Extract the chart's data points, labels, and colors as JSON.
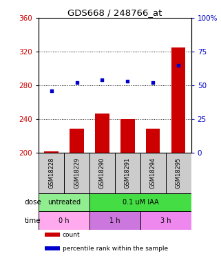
{
  "title": "GDS668 / 248766_at",
  "samples": [
    "GSM18228",
    "GSM18229",
    "GSM18290",
    "GSM18291",
    "GSM18294",
    "GSM18295"
  ],
  "bar_values": [
    201,
    228,
    246,
    240,
    228,
    325
  ],
  "dot_values": [
    46,
    52,
    54,
    53,
    52,
    65
  ],
  "ylim_left": [
    200,
    360
  ],
  "ylim_right": [
    0,
    100
  ],
  "yticks_left": [
    200,
    240,
    280,
    320,
    360
  ],
  "yticks_right": [
    0,
    25,
    50,
    75,
    100
  ],
  "bar_color": "#cc0000",
  "dot_color": "#0000cc",
  "bar_bottom": 200,
  "dose_labels": [
    {
      "label": "untreated",
      "span": [
        0,
        2
      ],
      "color": "#90ee90"
    },
    {
      "label": "0.1 uM IAA",
      "span": [
        2,
        6
      ],
      "color": "#44dd44"
    }
  ],
  "time_labels": [
    {
      "label": "0 h",
      "span": [
        0,
        2
      ],
      "color": "#ffaaee"
    },
    {
      "label": "1 h",
      "span": [
        2,
        4
      ],
      "color": "#cc77dd"
    },
    {
      "label": "3 h",
      "span": [
        4,
        6
      ],
      "color": "#ee88ee"
    }
  ],
  "dose_row_label": "dose",
  "time_row_label": "time",
  "legend_items": [
    {
      "label": "count",
      "color": "#cc0000"
    },
    {
      "label": "percentile rank within the sample",
      "color": "#0000cc"
    }
  ],
  "background_color": "#ffffff",
  "plot_bg": "#ffffff",
  "sample_bg": "#cccccc"
}
